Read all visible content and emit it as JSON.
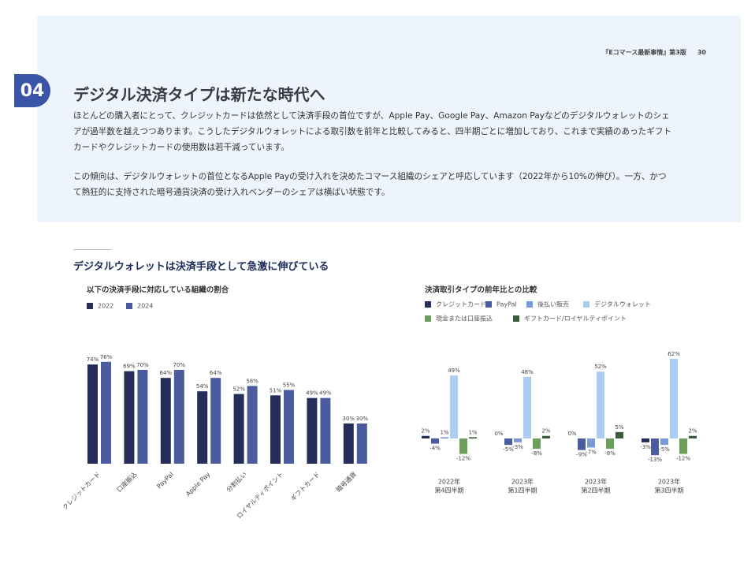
{
  "header": {
    "publication": "『Eコマース最新事情』第3版",
    "page_number": 30
  },
  "section": {
    "number": "04",
    "title": "デジタル決済タイプは新たな時代へ",
    "paragraphs": [
      "ほとんどの購入者にとって、クレジットカードは依然として決済手段の首位ですが、Apple Pay、Google Pay、Amazon Payなどのデジタルウォレットのシェアが過半数を越えつつあります。こうしたデジタルウォレットによる取引数を前年と比較してみると、四半期ごとに増加しており、これまで実績のあったギフトカードやクレジットカードの使用数は若干減っています。",
      "この傾向は、デジタルウォレットの首位となるApple Payの受け入れを決めたコマース組織のシェアと呼応しています（2022年から10%の伸び）。一方、かつて熱狂的に支持された暗号通貨決済の受け入れベンダーのシェアは横ばい状態です。"
    ]
  },
  "figure_title": "デジタルウォレットは決済手段として急激に伸びている",
  "chart_data": [
    {
      "type": "bar",
      "title": "以下の決済手段に対応している組織の割合",
      "categories": [
        "クレジットカード",
        "口座振込",
        "PayPal",
        "Apple Pay",
        "分割払い",
        "ロイヤルティポイント",
        "ギフトカード",
        "暗号通貨"
      ],
      "series": [
        {
          "name": "2022",
          "color": "#252d5a",
          "values": [
            74,
            69,
            64,
            54,
            52,
            51,
            49,
            30
          ],
          "value_labels": [
            "74%",
            "69%",
            "64%",
            "54%",
            "52%",
            "51%",
            "49%",
            "30%"
          ]
        },
        {
          "name": "2024",
          "color": "#4a5c9e",
          "values": [
            76,
            70,
            70,
            64,
            58,
            55,
            49,
            30
          ],
          "value_labels": [
            "76%",
            "70%",
            "70%",
            "64%",
            "58%",
            "55%",
            "49%",
            "30%"
          ]
        }
      ]
    },
    {
      "type": "bar",
      "title": "決済取引タイプの前年比との比較",
      "categories": [
        [
          "2022年",
          "第4四半期"
        ],
        [
          "2023年",
          "第1四半期"
        ],
        [
          "2023年",
          "第2四半期"
        ],
        [
          "2023年",
          "第3四半期"
        ]
      ],
      "series": [
        {
          "name": "クレジットカード",
          "color": "#252d5a",
          "values": [
            2,
            0,
            0,
            -3
          ],
          "value_labels": [
            "2%",
            "0%",
            "0%",
            "-3%"
          ]
        },
        {
          "name": "PayPal",
          "color": "#4a5c9e",
          "values": [
            -4,
            -5,
            -9,
            -13
          ],
          "value_labels": [
            "-4%",
            "-5%",
            "-9%",
            "-13%"
          ]
        },
        {
          "name": "後払い販売",
          "color": "#7a9ad6",
          "values": [
            1,
            -3,
            -7,
            -5
          ],
          "value_labels": [
            "1%",
            "-3%",
            "-7%",
            "-5%"
          ]
        },
        {
          "name": "デジタルウォレット",
          "color": "#abcdf2",
          "values": [
            49,
            48,
            52,
            62
          ],
          "value_labels": [
            "49%",
            "48%",
            "52%",
            "62%"
          ]
        },
        {
          "name": "現金または口座振込",
          "color": "#6aa05a",
          "values": [
            -12,
            -8,
            -8,
            -12
          ],
          "value_labels": [
            "-12%",
            "-8%",
            "-8%",
            "-12%"
          ]
        },
        {
          "name": "ギフトカード/ロイヤルティポイント",
          "color": "#3c5a3c",
          "values": [
            1,
            2,
            5,
            2
          ],
          "value_labels": [
            "1%",
            "2%",
            "5%",
            "2%"
          ]
        }
      ]
    }
  ]
}
